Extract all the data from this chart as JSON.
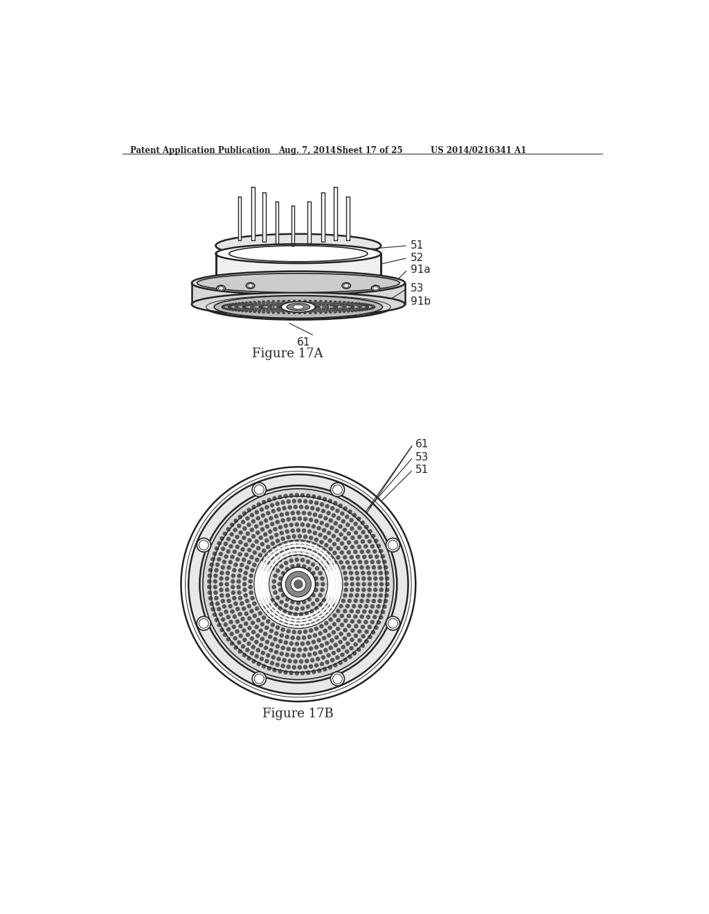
{
  "bg_color": "#ffffff",
  "lc": "#222222",
  "header_text": "Patent Application Publication",
  "header_date": "Aug. 7, 2014",
  "header_sheet": "Sheet 17 of 25",
  "header_patent": "US 2014/0216341 A1",
  "fig17a_label": "Figure 17A",
  "fig17b_label": "Figure 17B"
}
